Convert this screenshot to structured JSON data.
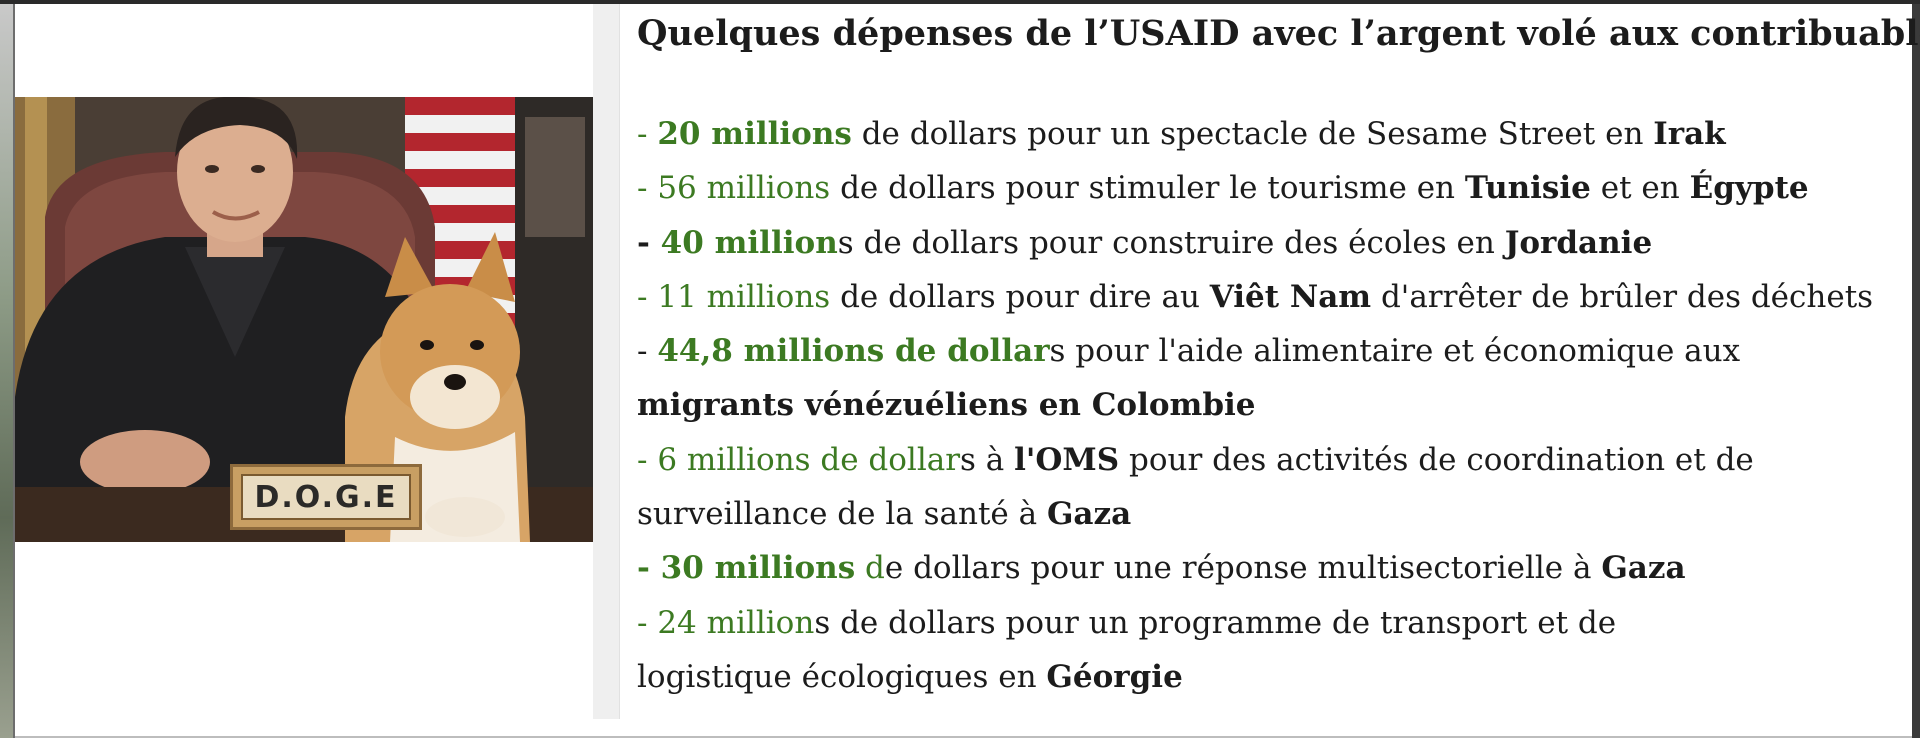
{
  "headline": "Quelques dépenses de l’USAID avec l’argent volé aux contribuables:",
  "photo": {
    "nameplate": "D.O.G.E"
  },
  "lines": [
    [
      {
        "t": "- ",
        "s": "g"
      },
      {
        "t": "20 millions",
        "s": "gb"
      },
      {
        "t": " de dollars pour un spectacle de Sesame Street en ",
        "s": ""
      },
      {
        "t": "Irak",
        "s": "b"
      }
    ],
    [
      {
        "t": "- 56 millions",
        "s": "g"
      },
      {
        "t": " de dollars pour stimuler le tourisme en ",
        "s": ""
      },
      {
        "t": "Tunisie",
        "s": "b"
      },
      {
        "t": " et en ",
        "s": ""
      },
      {
        "t": "Égypte",
        "s": "b"
      }
    ],
    [
      {
        "t": "- ",
        "s": "b"
      },
      {
        "t": "40 million",
        "s": "gb"
      },
      {
        "t": "s de dollars pour construire des écoles en ",
        "s": ""
      },
      {
        "t": "Jordanie",
        "s": "b"
      }
    ],
    [
      {
        "t": "- 11 millions",
        "s": "g"
      },
      {
        "t": " de dollars pour dire au ",
        "s": ""
      },
      {
        "t": "Viêt Nam",
        "s": "b"
      },
      {
        "t": " d'arrêter de brûler des déchets",
        "s": ""
      }
    ],
    [
      {
        "t": "- ",
        "s": ""
      },
      {
        "t": "44,8 millions de dollar",
        "s": "gb"
      },
      {
        "t": "s pour l'aide alimentaire et économique aux",
        "s": ""
      }
    ],
    [
      {
        "t": "migrants vénézuéliens en Colombie",
        "s": "b"
      }
    ],
    [
      {
        "t": "- 6 millions de dollar",
        "s": "g"
      },
      {
        "t": "s à ",
        "s": ""
      },
      {
        "t": "l'OMS",
        "s": "b"
      },
      {
        "t": " pour des activités de coordination et de",
        "s": ""
      }
    ],
    [
      {
        "t": "surveillance de la santé à ",
        "s": ""
      },
      {
        "t": "Gaza",
        "s": "b"
      }
    ],
    [
      {
        "t": "- 30 millions",
        "s": "gb"
      },
      {
        "t": " d",
        "s": "g"
      },
      {
        "t": "e dollars pour une réponse multisectorielle à ",
        "s": ""
      },
      {
        "t": "Gaza",
        "s": "b"
      }
    ],
    [
      {
        "t": "- 24 million",
        "s": "g"
      },
      {
        "t": "s de dollars pour un programme de transport et de",
        "s": ""
      }
    ],
    [
      {
        "t": "logistique écologiques en ",
        "s": ""
      },
      {
        "t": "Géorgie",
        "s": "b"
      }
    ]
  ]
}
